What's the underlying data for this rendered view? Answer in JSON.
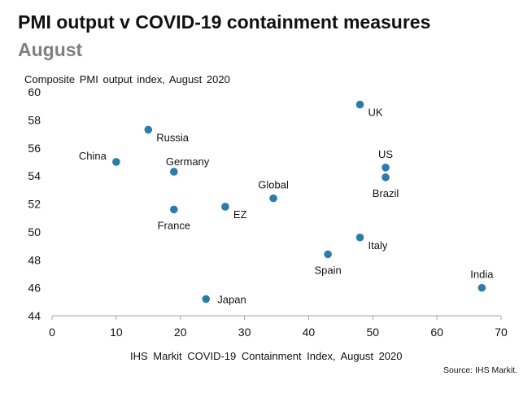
{
  "title": "PMI output v COVID-19 containment measures",
  "subtitle": "August",
  "source": "Source: IHS Markit.",
  "colors": {
    "point": "#2b7bab",
    "axis": "#a6a6a6",
    "text": "#111111"
  },
  "chart_data": {
    "type": "scatter",
    "title": "PMI output v COVID-19 containment measures",
    "subtitle": "August",
    "xlabel": "IHS Markit COVID-19 Containment Index, August 2020",
    "ylabel": "Composite PMI output index, August 2020",
    "xlim": [
      0,
      70
    ],
    "ylim": [
      44,
      60
    ],
    "xticks": [
      "0",
      "10",
      "20",
      "30",
      "40",
      "50",
      "60",
      "70"
    ],
    "yticks": [
      "44",
      "46",
      "48",
      "50",
      "52",
      "54",
      "56",
      "58",
      "60"
    ],
    "grid": false,
    "legend": "none",
    "points": [
      {
        "label": "UK",
        "x": 48,
        "y": 59.1,
        "label_pos": "right-below"
      },
      {
        "label": "Russia",
        "x": 15,
        "y": 57.3,
        "label_pos": "right-below"
      },
      {
        "label": "China",
        "x": 10,
        "y": 55.0,
        "label_pos": "left-above"
      },
      {
        "label": "Germany",
        "x": 19,
        "y": 54.3,
        "label_pos": "right-above"
      },
      {
        "label": "US",
        "x": 52,
        "y": 54.6,
        "label_pos": "above"
      },
      {
        "label": "Brazil",
        "x": 52,
        "y": 53.9,
        "label_pos": "below"
      },
      {
        "label": "Global",
        "x": 34.5,
        "y": 52.4,
        "label_pos": "above"
      },
      {
        "label": "EZ",
        "x": 27,
        "y": 51.8,
        "label_pos": "right-below"
      },
      {
        "label": "France",
        "x": 19,
        "y": 51.6,
        "label_pos": "below"
      },
      {
        "label": "Italy",
        "x": 48,
        "y": 49.6,
        "label_pos": "right-below"
      },
      {
        "label": "Spain",
        "x": 43,
        "y": 48.4,
        "label_pos": "below"
      },
      {
        "label": "India",
        "x": 67,
        "y": 46.0,
        "label_pos": "above"
      },
      {
        "label": "Japan",
        "x": 24,
        "y": 45.2,
        "label_pos": "right"
      }
    ]
  }
}
